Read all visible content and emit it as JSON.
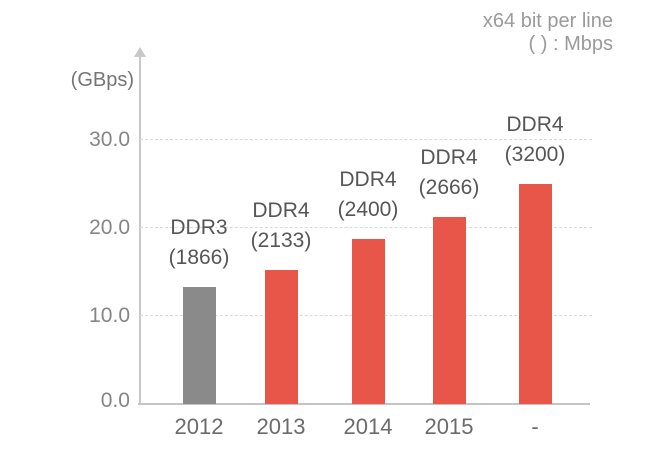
{
  "annotation": {
    "line1": "x64 bit per line",
    "line2": "( ) : Mbps"
  },
  "y_axis": {
    "unit_label": "(GBps)",
    "ticks": [
      "30.0",
      "20.0",
      "10.0",
      "0.0"
    ]
  },
  "colors": {
    "ddr3_bar": "#8a8a8a",
    "ddr4_bar": "#e85549",
    "grid": "#d8d8d8",
    "axis": "#c8c8c8",
    "label_text": "#565656",
    "tick_text": "#858585",
    "annotation_text": "#9a9a9a"
  },
  "chart_data": {
    "type": "bar",
    "title": "",
    "xlabel": "",
    "ylabel": "(GBps)",
    "ylim": [
      0,
      33
    ],
    "yticks": [
      0.0,
      10.0,
      20.0,
      30.0
    ],
    "grid": "horizontal dashed",
    "legend_position": "none",
    "annotations": [
      "x64 bit per line",
      "( ) : Mbps"
    ],
    "categories": [
      "2012",
      "2013",
      "2014",
      "2015",
      "-"
    ],
    "values": [
      13.3,
      15.2,
      18.8,
      21.3,
      25.0
    ],
    "bars": [
      {
        "category": "2012",
        "label": "DDR3",
        "speed": "(1866)",
        "value": 13.3,
        "color": "#8a8a8a"
      },
      {
        "category": "2013",
        "label": "DDR4",
        "speed": "(2133)",
        "value": 15.2,
        "color": "#e85549"
      },
      {
        "category": "2014",
        "label": "DDR4",
        "speed": "(2400)",
        "value": 18.8,
        "color": "#e85549"
      },
      {
        "category": "2015",
        "label": "DDR4",
        "speed": "(2666)",
        "value": 21.3,
        "color": "#e85549"
      },
      {
        "category": "-",
        "label": "DDR4",
        "speed": "(3200)",
        "value": 25.0,
        "color": "#e85549"
      }
    ]
  }
}
